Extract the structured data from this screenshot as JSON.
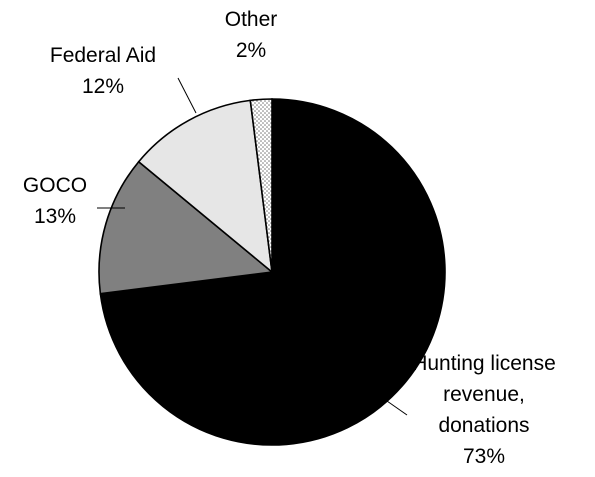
{
  "chart_data": {
    "type": "pie",
    "title": "",
    "start_angle_deg": 0,
    "direction": "clockwise",
    "slices": [
      {
        "name": "Hunting license revenue, donations",
        "label_lines": [
          "Hunting license",
          "revenue,",
          "donations"
        ],
        "value": 73,
        "value_label": "73%",
        "color": "#000000",
        "pattern": "solid"
      },
      {
        "name": "GOCO",
        "label_lines": [
          "GOCO"
        ],
        "value": 13,
        "value_label": "13%",
        "color": "#808080",
        "pattern": "solid"
      },
      {
        "name": "Federal Aid",
        "label_lines": [
          "Federal Aid"
        ],
        "value": 12,
        "value_label": "12%",
        "color": "#e6e6e6",
        "pattern": "solid"
      },
      {
        "name": "Other",
        "label_lines": [
          "Other"
        ],
        "value": 2,
        "value_label": "2%",
        "color": "#ffffff",
        "pattern": "dotted"
      }
    ]
  }
}
